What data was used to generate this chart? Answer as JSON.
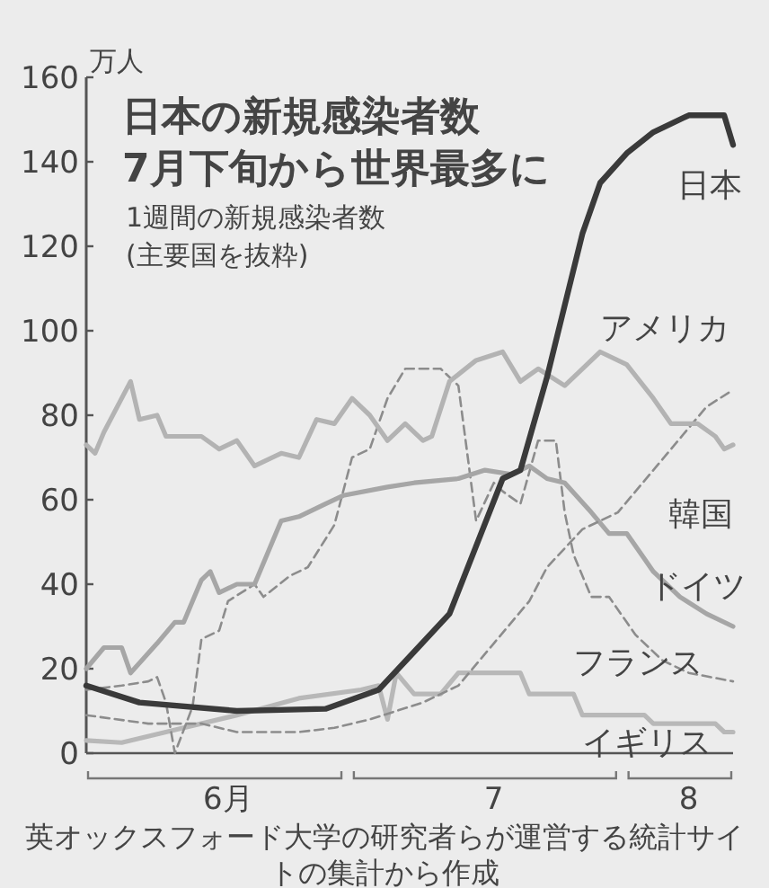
{
  "chart_data": {
    "type": "line",
    "title": "日本の新規感染者数\n7月下旬から世界最多に",
    "subtitle": "1週間の新規感染者数\n(主要国を抜粋)",
    "ylabel": "万人",
    "annotations": [
      "英オックスフォード大学の研究者らが運営する統計サイトの集計から作成"
    ],
    "xlim": [
      "--06-01",
      "--08-13"
    ],
    "xticks": [
      {
        "value": "--06-17",
        "label": "6月"
      },
      {
        "value": "--07-17",
        "label": "7"
      },
      {
        "value": "--08-08",
        "label": "8"
      }
    ],
    "ylim": [
      0,
      160
    ],
    "yticks": [
      0,
      20,
      40,
      60,
      80,
      100,
      120,
      140,
      160
    ],
    "grid": false,
    "series": [
      {
        "name": "日本",
        "color": "#3a3a3a",
        "line_style": "solid",
        "x": [
          "--06-01",
          "--06-07",
          "--06-18",
          "--06-28",
          "--07-04",
          "--07-08",
          "--07-12",
          "--07-15",
          "--07-18",
          "--07-20",
          "--07-23",
          "--07-25",
          "--07-27",
          "--07-29",
          "--08-01",
          "--08-04",
          "--08-08",
          "--08-12",
          "--08-13"
        ],
        "values": [
          16,
          12,
          10,
          10.5,
          15,
          24,
          33,
          49,
          65,
          67,
          89,
          106,
          123,
          135,
          142,
          147,
          151,
          151,
          144
        ]
      },
      {
        "name": "アメリカ",
        "color": "#b3b3b3",
        "line_style": "solid",
        "x": [
          "--06-01",
          "--06-02",
          "--06-03",
          "--06-06",
          "--06-07",
          "--06-09",
          "--06-10",
          "--06-14",
          "--06-16",
          "--06-18",
          "--06-20",
          "--06-23",
          "--06-25",
          "--06-27",
          "--06-29",
          "--07-01",
          "--07-03",
          "--07-05",
          "--07-07",
          "--07-09",
          "--07-10",
          "--07-12",
          "--07-15",
          "--07-18",
          "--07-20",
          "--07-22",
          "--07-25",
          "--07-27",
          "--07-29",
          "--08-01",
          "--08-04",
          "--08-06",
          "--08-09",
          "--08-11",
          "--08-12",
          "--08-13"
        ],
        "values": [
          73,
          71,
          76,
          88,
          79,
          80,
          75,
          75,
          72,
          74,
          68,
          71,
          70,
          79,
          78,
          84,
          80,
          74,
          78,
          74,
          75,
          88,
          93,
          95,
          88,
          91,
          87,
          91,
          95,
          92,
          84,
          78,
          78,
          75,
          72,
          73
        ]
      },
      {
        "name": "韓国",
        "color": "#8c8c8c",
        "line_style": "dashed",
        "x": [
          "--06-01",
          "--06-08",
          "--06-14",
          "--06-18",
          "--06-25",
          "--06-29",
          "--07-03",
          "--07-09",
          "--07-13",
          "--07-17",
          "--07-21",
          "--07-23",
          "--07-27",
          "--07-31",
          "--08-04",
          "--08-08",
          "--08-10",
          "--08-13"
        ],
        "values": [
          9,
          7,
          7,
          5,
          5,
          6,
          8,
          12,
          16,
          26,
          36,
          44,
          53,
          57,
          67,
          77,
          82,
          86
        ]
      },
      {
        "name": "ドイツ",
        "color": "#a6a6a6",
        "line_style": "solid",
        "x": [
          "--06-01",
          "--06-03",
          "--06-05",
          "--06-06",
          "--06-09",
          "--06-11",
          "--06-12",
          "--06-14",
          "--06-15",
          "--06-16",
          "--06-18",
          "--06-20",
          "--06-22",
          "--06-23",
          "--06-25",
          "--06-28",
          "--06-30",
          "--07-05",
          "--07-08",
          "--07-13",
          "--07-16",
          "--07-19",
          "--07-21",
          "--07-23",
          "--07-25",
          "--07-28",
          "--07-30",
          "--08-01",
          "--08-03",
          "--08-04",
          "--08-07",
          "--08-10",
          "--08-13"
        ],
        "values": [
          20,
          25,
          25,
          19,
          26,
          31,
          31,
          41,
          43,
          38,
          40,
          40,
          50,
          55,
          56,
          59,
          61,
          63,
          64,
          65,
          67,
          66,
          68,
          65,
          64,
          57,
          52,
          52,
          46,
          43,
          37,
          33,
          30
        ]
      },
      {
        "name": "フランス",
        "color": "#8c8c8c",
        "line_style": "dashed",
        "x": [
          "--06-01",
          "--06-05",
          "--06-08",
          "--06-09",
          "--06-10",
          "--06-11",
          "--06-13",
          "--06-14",
          "--06-16",
          "--06-17",
          "--06-20",
          "--06-21",
          "--06-24",
          "--06-26",
          "--06-29",
          "--07-01",
          "--07-03",
          "--07-05",
          "--07-07",
          "--07-11",
          "--07-13",
          "--07-15",
          "--07-17",
          "--07-18",
          "--07-20",
          "--07-22",
          "--07-24",
          "--07-25",
          "--07-26",
          "--07-28",
          "--07-30",
          "--08-02",
          "--08-05",
          "--08-08",
          "--08-13"
        ],
        "values": [
          15,
          16,
          17,
          18,
          12,
          0,
          11,
          27,
          29,
          36,
          40,
          37,
          42,
          44,
          54,
          70,
          72,
          84,
          91,
          91,
          87,
          55,
          64,
          62,
          59,
          74,
          74,
          57,
          47,
          37,
          37,
          28,
          22,
          19,
          17
        ]
      },
      {
        "name": "イギリス",
        "color": "#b8b8b8",
        "line_style": "solid",
        "x": [
          "--06-01",
          "--06-05",
          "--06-12",
          "--06-18",
          "--06-25",
          "--07-02",
          "--07-04",
          "--07-05",
          "--07-06",
          "--07-08",
          "--07-11",
          "--07-13",
          "--07-20",
          "--07-21",
          "--07-26",
          "--07-27",
          "--08-03",
          "--08-04",
          "--08-11",
          "--08-12",
          "--08-13"
        ],
        "values": [
          3,
          2.5,
          6,
          9,
          13,
          15,
          16,
          8,
          19,
          14,
          14,
          19,
          19,
          14,
          14,
          9,
          9,
          7,
          7,
          5,
          5
        ]
      }
    ]
  }
}
